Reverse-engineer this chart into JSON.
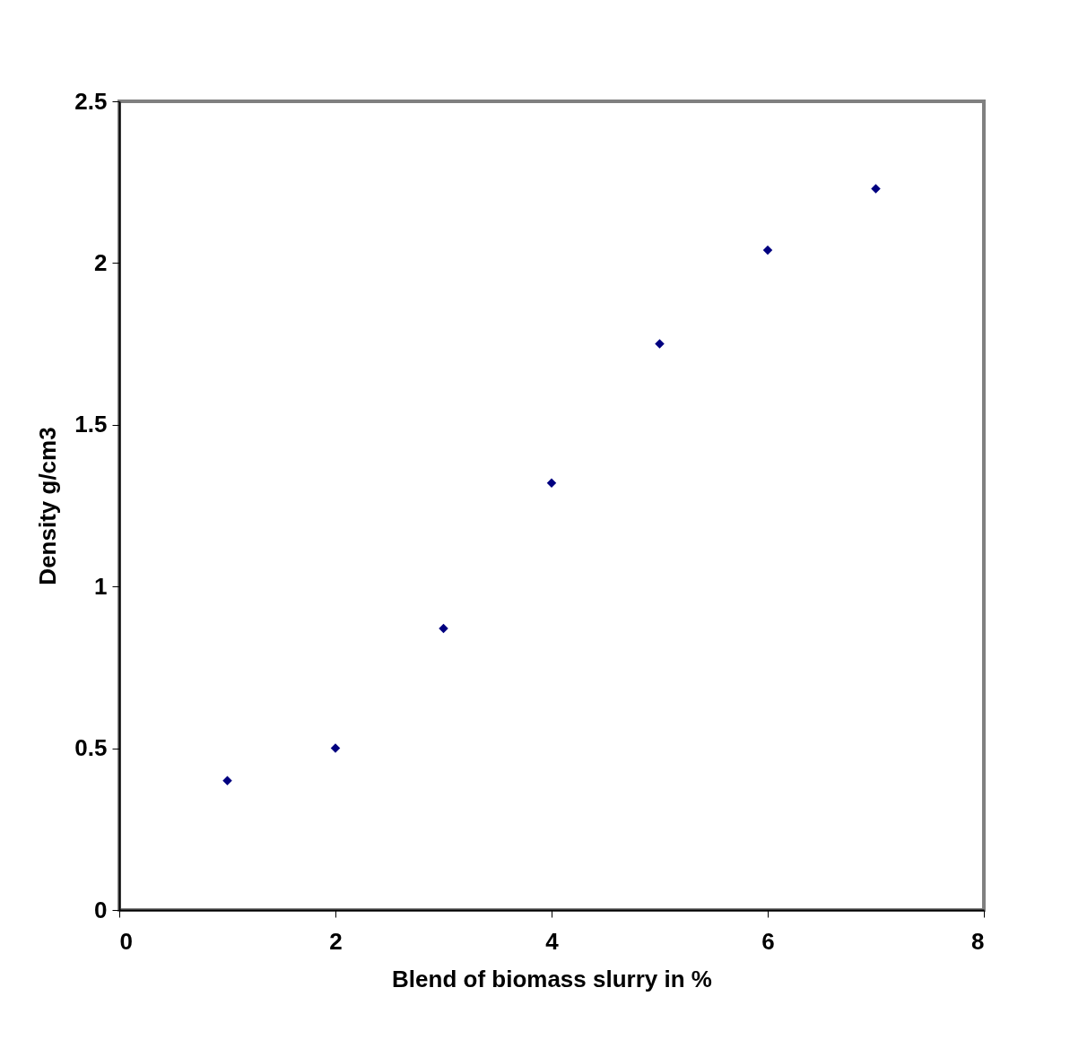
{
  "chart_data": {
    "type": "scatter",
    "xlabel": "Blend of biomass slurry in %",
    "ylabel": "Density g/cm3",
    "x": [
      1,
      2,
      3,
      4,
      5,
      6,
      7
    ],
    "series": [
      {
        "color": "#000080",
        "values": [
          0.4,
          0.5,
          0.87,
          1.32,
          1.75,
          2.04,
          2.23
        ]
      }
    ],
    "xlim": [
      0,
      8
    ],
    "xticks": [
      0,
      2,
      4,
      6,
      8
    ],
    "ylim": [
      0,
      2.5
    ],
    "yticks": [
      0,
      0.5,
      1,
      1.5,
      2,
      2.5
    ],
    "marker": "diamond",
    "grid": false
  }
}
